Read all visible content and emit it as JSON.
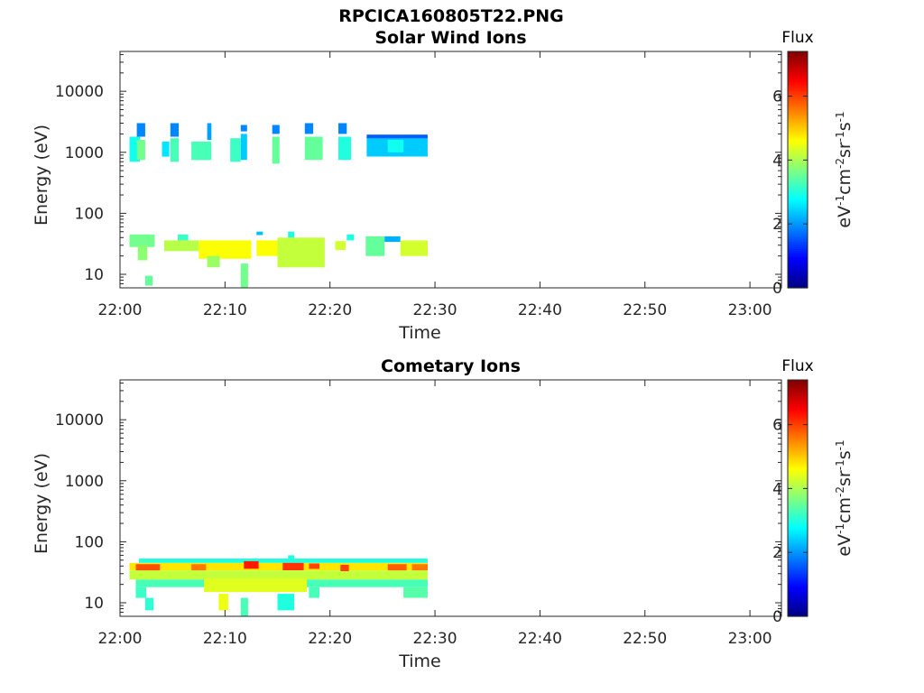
{
  "figure_title": "RPCICA160805T22.PNG",
  "chart_data": [
    {
      "type": "heatmap",
      "title": "Solar Wind Ions",
      "xlabel": "Time",
      "ylabel": "Energy (eV)",
      "x_ticks": [
        "22:00",
        "22:10",
        "22:20",
        "22:30",
        "22:40",
        "22:50",
        "23:00"
      ],
      "xlim_minutes": [
        0,
        63
      ],
      "y_scale": "log",
      "y_ticks": [
        10,
        100,
        1000,
        10000
      ],
      "y_tick_labels": [
        "10",
        "100",
        "1000",
        "10000"
      ],
      "ylim": [
        6,
        45000
      ],
      "colorbar": {
        "title": "Flux",
        "label_parts": [
          "eV",
          "-1",
          "cm",
          "-2",
          "sr",
          "-1",
          "s",
          "-1"
        ],
        "ticks": [
          0,
          2,
          4,
          6
        ],
        "tick_labels": [
          "0",
          "2",
          "4",
          "6"
        ],
        "range": [
          0,
          7.4
        ],
        "colormap": "jet"
      },
      "cells": [
        {
          "t0": 0.9,
          "t1": 1.9,
          "e0": 700,
          "e1": 1800,
          "v": 2.9
        },
        {
          "t0": 1.6,
          "t1": 2.4,
          "e0": 1800,
          "e1": 3000,
          "v": 1.9
        },
        {
          "t0": 1.6,
          "t1": 2.4,
          "e0": 750,
          "e1": 1600,
          "v": 3.6
        },
        {
          "t0": 4.0,
          "t1": 4.7,
          "e0": 850,
          "e1": 1500,
          "v": 2.6
        },
        {
          "t0": 4.8,
          "t1": 5.6,
          "e0": 700,
          "e1": 1700,
          "v": 3.3
        },
        {
          "t0": 4.8,
          "t1": 5.6,
          "e0": 1800,
          "e1": 3000,
          "v": 1.9
        },
        {
          "t0": 6.8,
          "t1": 8.7,
          "e0": 750,
          "e1": 1500,
          "v": 3.3
        },
        {
          "t0": 8.3,
          "t1": 8.7,
          "e0": 1600,
          "e1": 3000,
          "v": 2.1
        },
        {
          "t0": 10.5,
          "t1": 11.5,
          "e0": 700,
          "e1": 1700,
          "v": 3.2
        },
        {
          "t0": 11.5,
          "t1": 12.1,
          "e0": 750,
          "e1": 2000,
          "v": 2.4
        },
        {
          "t0": 11.5,
          "t1": 12.1,
          "e0": 2200,
          "e1": 2800,
          "v": 1.9
        },
        {
          "t0": 14.5,
          "t1": 15.2,
          "e0": 650,
          "e1": 1800,
          "v": 3.5
        },
        {
          "t0": 14.5,
          "t1": 15.2,
          "e0": 2000,
          "e1": 2800,
          "v": 1.9
        },
        {
          "t0": 17.6,
          "t1": 19.3,
          "e0": 750,
          "e1": 1800,
          "v": 3.5
        },
        {
          "t0": 17.6,
          "t1": 18.4,
          "e0": 2000,
          "e1": 3000,
          "v": 1.9
        },
        {
          "t0": 20.8,
          "t1": 22.0,
          "e0": 750,
          "e1": 1800,
          "v": 3.0
        },
        {
          "t0": 20.8,
          "t1": 21.6,
          "e0": 2000,
          "e1": 3000,
          "v": 1.9
        },
        {
          "t0": 23.5,
          "t1": 29.3,
          "e0": 850,
          "e1": 1800,
          "v": 2.4
        },
        {
          "t0": 23.5,
          "t1": 29.3,
          "e0": 1700,
          "e1": 1950,
          "v": 1.6
        },
        {
          "t0": 25.5,
          "t1": 27.0,
          "e0": 1000,
          "e1": 1600,
          "v": 2.9
        },
        {
          "t0": 0.9,
          "t1": 3.3,
          "e0": 28,
          "e1": 45,
          "v": 3.6
        },
        {
          "t0": 1.7,
          "t1": 2.6,
          "e0": 17,
          "e1": 30,
          "v": 3.8
        },
        {
          "t0": 2.4,
          "t1": 3.1,
          "e0": 6.5,
          "e1": 9.5,
          "v": 3.5
        },
        {
          "t0": 4.2,
          "t1": 7.5,
          "e0": 24,
          "e1": 36,
          "v": 4.1
        },
        {
          "t0": 5.5,
          "t1": 6.5,
          "e0": 36,
          "e1": 45,
          "v": 3.2
        },
        {
          "t0": 7.5,
          "t1": 12.5,
          "e0": 18,
          "e1": 36,
          "v": 4.6
        },
        {
          "t0": 8.3,
          "t1": 9.5,
          "e0": 13,
          "e1": 20,
          "v": 3.9
        },
        {
          "t0": 11.5,
          "t1": 12.2,
          "e0": 6,
          "e1": 15,
          "v": 3.6
        },
        {
          "t0": 13.0,
          "t1": 15.5,
          "e0": 20,
          "e1": 36,
          "v": 4.6
        },
        {
          "t0": 13.0,
          "t1": 13.6,
          "e0": 44,
          "e1": 50,
          "v": 2.3
        },
        {
          "t0": 15.0,
          "t1": 19.5,
          "e0": 13,
          "e1": 40,
          "v": 4.2
        },
        {
          "t0": 16.0,
          "t1": 16.6,
          "e0": 40,
          "e1": 50,
          "v": 3.0
        },
        {
          "t0": 20.5,
          "t1": 21.5,
          "e0": 25,
          "e1": 35,
          "v": 4.3
        },
        {
          "t0": 21.6,
          "t1": 22.3,
          "e0": 36,
          "e1": 45,
          "v": 3.0
        },
        {
          "t0": 23.4,
          "t1": 25.2,
          "e0": 20,
          "e1": 42,
          "v": 3.5
        },
        {
          "t0": 25.2,
          "t1": 26.7,
          "e0": 34,
          "e1": 42,
          "v": 2.2
        },
        {
          "t0": 26.7,
          "t1": 29.3,
          "e0": 20,
          "e1": 36,
          "v": 4.3
        }
      ]
    },
    {
      "type": "heatmap",
      "title": "Cometary Ions",
      "xlabel": "Time",
      "ylabel": "Energy (eV)",
      "x_ticks": [
        "22:00",
        "22:10",
        "22:20",
        "22:30",
        "22:40",
        "22:50",
        "23:00"
      ],
      "xlim_minutes": [
        0,
        63
      ],
      "y_scale": "log",
      "y_ticks": [
        10,
        100,
        1000,
        10000
      ],
      "y_tick_labels": [
        "10",
        "100",
        "1000",
        "10000"
      ],
      "ylim": [
        6,
        45000
      ],
      "colorbar": {
        "title": "Flux",
        "label_parts": [
          "eV",
          "-1",
          "cm",
          "-2",
          "sr",
          "-1",
          "s",
          "-1"
        ],
        "ticks": [
          0,
          2,
          4,
          6
        ],
        "tick_labels": [
          "0",
          "2",
          "4",
          "6"
        ],
        "range": [
          0,
          7.4
        ],
        "colormap": "jet"
      },
      "cells": [
        {
          "t0": 0.9,
          "t1": 29.3,
          "e0": 24,
          "e1": 34,
          "v": 4.2
        },
        {
          "t0": 0.9,
          "t1": 29.3,
          "e0": 34,
          "e1": 45,
          "v": 4.8
        },
        {
          "t0": 1.8,
          "t1": 29.3,
          "e0": 45,
          "e1": 53,
          "v": 3.0
        },
        {
          "t0": 1.5,
          "t1": 3.8,
          "e0": 34,
          "e1": 43,
          "v": 5.9
        },
        {
          "t0": 6.8,
          "t1": 8.2,
          "e0": 34,
          "e1": 43,
          "v": 5.6
        },
        {
          "t0": 11.8,
          "t1": 13.2,
          "e0": 36,
          "e1": 48,
          "v": 6.3
        },
        {
          "t0": 15.5,
          "t1": 17.5,
          "e0": 34,
          "e1": 45,
          "v": 6.1
        },
        {
          "t0": 18.0,
          "t1": 19.0,
          "e0": 36,
          "e1": 44,
          "v": 6.0
        },
        {
          "t0": 21.0,
          "t1": 21.8,
          "e0": 33,
          "e1": 42,
          "v": 6.0
        },
        {
          "t0": 25.5,
          "t1": 27.3,
          "e0": 34,
          "e1": 43,
          "v": 5.8
        },
        {
          "t0": 27.8,
          "t1": 29.3,
          "e0": 34,
          "e1": 43,
          "v": 5.6
        },
        {
          "t0": 1.5,
          "t1": 29.3,
          "e0": 18,
          "e1": 24,
          "v": 3.3
        },
        {
          "t0": 8.0,
          "t1": 17.8,
          "e0": 15,
          "e1": 25,
          "v": 4.4
        },
        {
          "t0": 1.5,
          "t1": 2.5,
          "e0": 12,
          "e1": 18,
          "v": 3.2
        },
        {
          "t0": 2.4,
          "t1": 3.2,
          "e0": 7.5,
          "e1": 12,
          "v": 3.1
        },
        {
          "t0": 9.4,
          "t1": 10.3,
          "e0": 7.5,
          "e1": 14,
          "v": 4.5
        },
        {
          "t0": 11.5,
          "t1": 12.2,
          "e0": 6,
          "e1": 12,
          "v": 3.3
        },
        {
          "t0": 15.0,
          "t1": 16.6,
          "e0": 7.5,
          "e1": 14,
          "v": 3.0
        },
        {
          "t0": 18.0,
          "t1": 19.0,
          "e0": 12,
          "e1": 18,
          "v": 3.3
        },
        {
          "t0": 27.0,
          "t1": 29.3,
          "e0": 12,
          "e1": 18,
          "v": 3.4
        },
        {
          "t0": 16.0,
          "t1": 16.6,
          "e0": 53,
          "e1": 60,
          "v": 3.0
        }
      ]
    }
  ]
}
